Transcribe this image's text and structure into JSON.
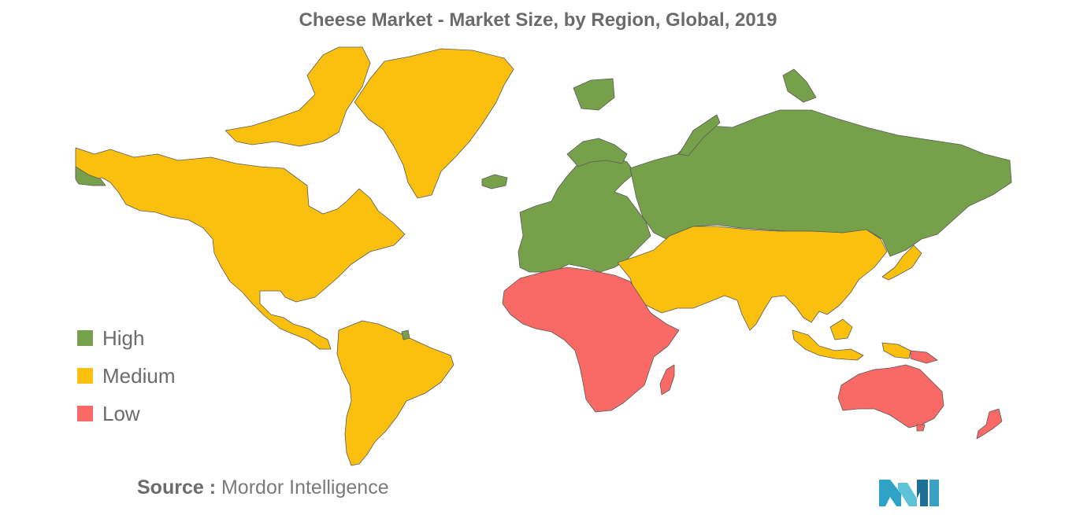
{
  "title": "Cheese Market - Market Size, by Region, Global, 2019",
  "legend": [
    {
      "label": "High",
      "color": "#77a04a"
    },
    {
      "label": "Medium",
      "color": "#fbbf0d"
    },
    {
      "label": "Low",
      "color": "#f96a66"
    }
  ],
  "source": {
    "key": "Source :",
    "value": "Mordor Intelligence"
  },
  "regions": {
    "north_america": "Medium",
    "greenland": "Medium",
    "south_america": "Medium",
    "europe": "High",
    "russia": "High",
    "middle_east_asia": "Medium",
    "africa": "Low",
    "oceania": "Low"
  },
  "logo_icon": "mordor-intelligence-logo"
}
